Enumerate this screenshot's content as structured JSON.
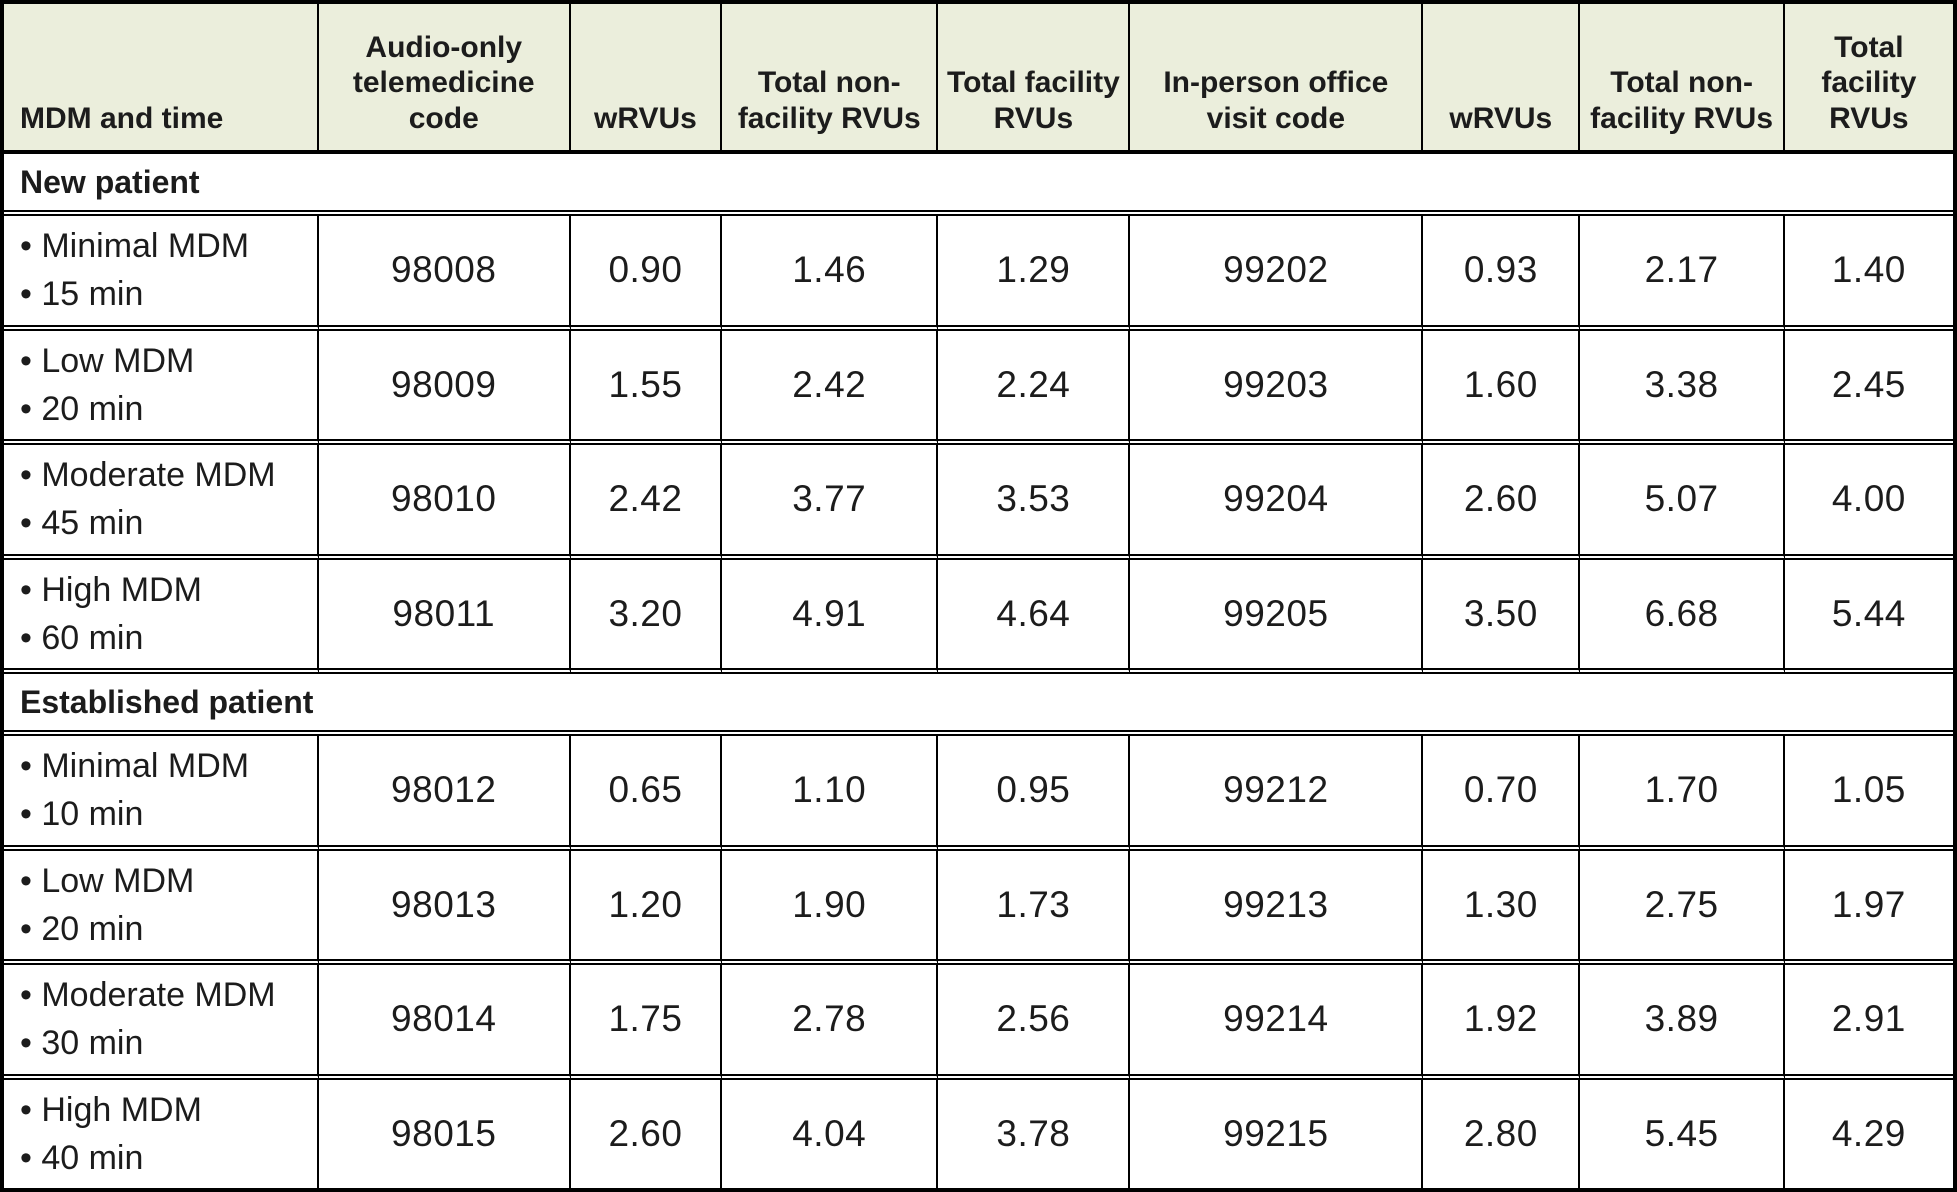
{
  "chart_data": {
    "type": "table",
    "columns": [
      "MDM and time",
      "Audio-only telemedicine code",
      "wRVUs",
      "Total non-facility RVUs",
      "Total facility RVUs",
      "In-person office visit code",
      "wRVUs",
      "Total non-facility RVUs",
      "Total facility RVUs"
    ],
    "sections": [
      {
        "label": "New patient",
        "rows": [
          {
            "lines": [
              "• Minimal MDM",
              "• 15 min"
            ],
            "values": [
              "98008",
              "0.90",
              "1.46",
              "1.29",
              "99202",
              "0.93",
              "2.17",
              "1.40"
            ]
          },
          {
            "lines": [
              "• Low MDM",
              "• 20 min"
            ],
            "values": [
              "98009",
              "1.55",
              "2.42",
              "2.24",
              "99203",
              "1.60",
              "3.38",
              "2.45"
            ]
          },
          {
            "lines": [
              "• Moderate MDM",
              "• 45 min"
            ],
            "values": [
              "98010",
              "2.42",
              "3.77",
              "3.53",
              "99204",
              "2.60",
              "5.07",
              "4.00"
            ]
          },
          {
            "lines": [
              "• High MDM",
              "• 60 min"
            ],
            "values": [
              "98011",
              "3.20",
              "4.91",
              "4.64",
              "99205",
              "3.50",
              "6.68",
              "5.44"
            ]
          }
        ]
      },
      {
        "label": "Established patient",
        "rows": [
          {
            "lines": [
              "• Minimal MDM",
              "• 10 min"
            ],
            "values": [
              "98012",
              "0.65",
              "1.10",
              "0.95",
              "99212",
              "0.70",
              "1.70",
              "1.05"
            ]
          },
          {
            "lines": [
              "• Low MDM",
              "• 20 min"
            ],
            "values": [
              "98013",
              "1.20",
              "1.90",
              "1.73",
              "99213",
              "1.30",
              "2.75",
              "1.97"
            ]
          },
          {
            "lines": [
              "• Moderate MDM",
              "• 30 min"
            ],
            "values": [
              "98014",
              "1.75",
              "2.78",
              "2.56",
              "99214",
              "1.92",
              "3.89",
              "2.91"
            ]
          },
          {
            "lines": [
              "• High MDM",
              "• 40 min"
            ],
            "values": [
              "98015",
              "2.60",
              "4.04",
              "3.78",
              "99215",
              "2.80",
              "5.45",
              "4.29"
            ]
          }
        ]
      }
    ]
  },
  "colors": {
    "header_background": "#ebeedc",
    "border": "#000000",
    "text": "#1c1c1c",
    "row_background": "#ffffff"
  }
}
